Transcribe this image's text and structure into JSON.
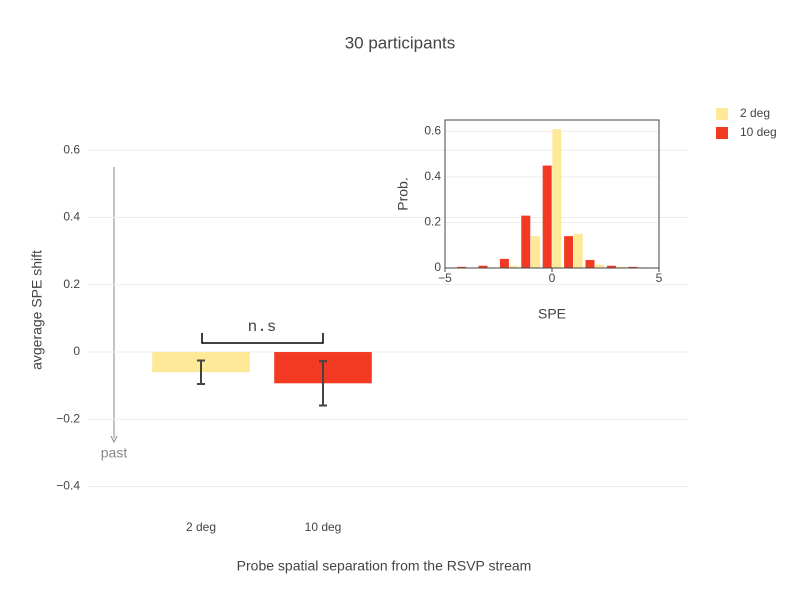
{
  "chart_data": [
    {
      "type": "bar",
      "title": "30 participants",
      "categories": [
        "2 deg",
        "10 deg"
      ],
      "series": [
        {
          "name": "2 deg",
          "color": "#fee999",
          "values": [
            -0.06,
            null
          ],
          "errors": [
            0.035,
            null
          ]
        },
        {
          "name": "10 deg",
          "color": "#f23a22",
          "values": [
            null,
            -0.093
          ],
          "errors": [
            null,
            0.066
          ]
        }
      ],
      "ylim": [
        -0.44,
        0.69
      ],
      "yticks": [
        0.6,
        0.4,
        0.2,
        0,
        {
          "value": -0.2,
          "label": "−0.2"
        },
        {
          "value": -0.4,
          "label": "−0.4"
        }
      ],
      "grid": true,
      "ylabel": "avgerage SPE shift",
      "xlabel": "Probe spatial separation from the RSVP stream",
      "annotations": [
        "n.s",
        "past"
      ],
      "legend": "top-right"
    },
    {
      "type": "histogram",
      "x": [
        -4,
        -3,
        -2,
        -1,
        0,
        1,
        2,
        3,
        4
      ],
      "series": [
        {
          "color": "#f23a22",
          "values": [
            0.005,
            0.01,
            0.04,
            0.23,
            0.45,
            0.14,
            0.035,
            0.01,
            0.005
          ]
        },
        {
          "color": "#fee999",
          "values": [
            0.002,
            0.003,
            0.01,
            0.14,
            0.61,
            0.15,
            0.015,
            0.005,
            0.003
          ]
        }
      ],
      "xlim": [
        -5,
        5
      ],
      "xticks": [
        {
          "value": -5,
          "label": "−5"
        },
        0,
        5
      ],
      "ylim": [
        0,
        0.65
      ],
      "yticks": [
        0,
        0.2,
        0.4,
        0.6
      ],
      "grid": true,
      "xlabel": "SPE",
      "ylabel": "Prob."
    }
  ]
}
